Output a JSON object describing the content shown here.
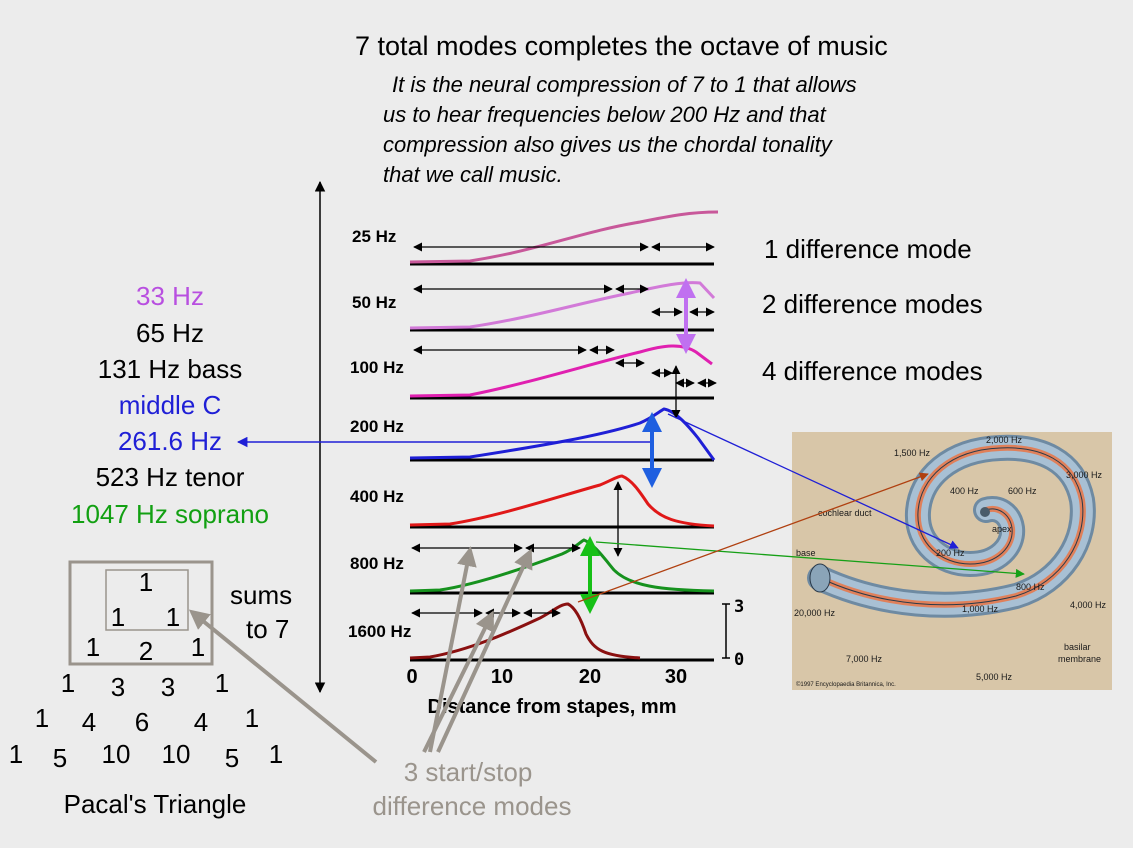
{
  "header": {
    "title": "7  total modes completes the octave of music",
    "note_lines": [
      "It is the neural compression of 7 to 1 that allows",
      "us to hear frequencies below 200 Hz and that",
      "compression also gives us the chordal tonality",
      "that we call music."
    ]
  },
  "frequency_list": {
    "items": [
      {
        "text": "33 Hz",
        "color": "#b84fe0"
      },
      {
        "text": "65 Hz",
        "color": "#000000"
      },
      {
        "text": "131 Hz bass",
        "color": "#000000"
      },
      {
        "text": "middle C",
        "color": "#1f1fd6"
      },
      {
        "text": "261.6 Hz",
        "color": "#1f1fd6"
      },
      {
        "text": "523 Hz tenor",
        "color": "#000000"
      },
      {
        "text": "1047 Hz soprano",
        "color": "#12a012"
      }
    ]
  },
  "curves": {
    "rows": [
      {
        "label": "25 Hz",
        "color": "#c8589a"
      },
      {
        "label": "50 Hz",
        "color": "#d27ad8"
      },
      {
        "label": "100 Hz",
        "color": "#e020b0"
      },
      {
        "label": "200 Hz",
        "color": "#1f1fd6"
      },
      {
        "label": "400 Hz",
        "color": "#e01818"
      },
      {
        "label": "800 Hz",
        "color": "#16921e"
      },
      {
        "label": "1600 Hz",
        "color": "#8a1010"
      }
    ],
    "x_ticks": [
      "0",
      "10",
      "20",
      "30"
    ],
    "x_label": "Distance from stapes, mm",
    "scale_ticks": [
      "3",
      "0"
    ]
  },
  "modes": {
    "one": "1 difference mode",
    "two": "2 difference modes",
    "four": "4 difference modes"
  },
  "sums": {
    "line1": "sums",
    "line2": "to 7"
  },
  "triangle": {
    "rows": [
      [
        "1"
      ],
      [
        "1",
        "1"
      ],
      [
        "1",
        "2",
        "1"
      ],
      [
        "1",
        "3",
        "3",
        "1"
      ],
      [
        "1",
        "4",
        "6",
        "4",
        "1"
      ],
      [
        "1",
        "5",
        "10",
        "10",
        "5",
        "1"
      ]
    ],
    "caption": "Pacal's Triangle"
  },
  "start_stop": {
    "line1": "3 start/stop",
    "line2": "difference modes"
  },
  "cochlea": {
    "labels": {
      "f2000": "2,000 Hz",
      "f1500": "1,500 Hz",
      "f3000": "3,000 Hz",
      "f400": "400 Hz",
      "f600": "600 Hz",
      "duct": "cochlear duct",
      "apex": "apex",
      "base": "base",
      "f200": "200 Hz",
      "f800": "800 Hz",
      "f20000": "20,000 Hz",
      "f1000": "1,000 Hz",
      "f4000": "4,000 Hz",
      "membrane1": "basilar",
      "membrane2": "membrane",
      "f7000": "7,000 Hz",
      "f5000": "5,000 Hz",
      "copyright": "©1997 Encyclopaedia Britannica, Inc."
    }
  }
}
